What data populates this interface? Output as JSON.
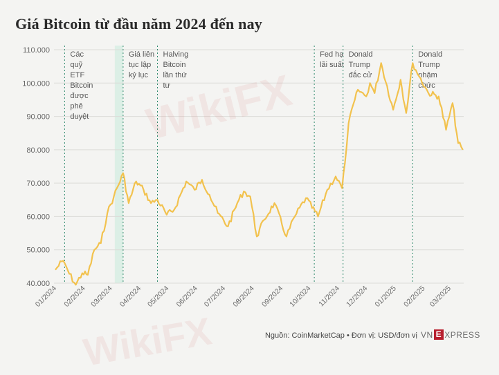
{
  "title": "Giá Bitcoin từ đầu năm 2024 đến nay",
  "footer": {
    "source": "Nguồn: CoinMarketCap • Đơn vị: USD/đơn vị"
  },
  "brand": {
    "left": "VN",
    "box": "E",
    "right": "XPRESS"
  },
  "watermark": "WikiFX",
  "chart_data": {
    "type": "line",
    "title": "Giá Bitcoin từ đầu năm 2024 đến nay",
    "ylim": [
      40000,
      110000
    ],
    "y_ticks": [
      40000,
      50000,
      60000,
      70000,
      80000,
      90000,
      100000,
      110000
    ],
    "y_tick_labels": [
      "40.000",
      "50.000",
      "60.000",
      "70.000",
      "80.000",
      "90.000",
      "100.000",
      "110.000"
    ],
    "x_tick_labels": [
      "01/2024",
      "02/2024",
      "03/2024",
      "04/2024",
      "05/2024",
      "06/2024",
      "07/2024",
      "08/2024",
      "09/2024",
      "10/2024",
      "11/2024",
      "12/2024",
      "01/2025",
      "02/2025",
      "03/2025"
    ],
    "line_color": "#f2c24e",
    "grid": "horizontal",
    "x": [
      "2024-01-01",
      "2024-01-08",
      "2024-01-11",
      "2024-01-16",
      "2024-01-23",
      "2024-01-30",
      "2024-02-05",
      "2024-02-12",
      "2024-02-19",
      "2024-02-26",
      "2024-03-04",
      "2024-03-14",
      "2024-03-20",
      "2024-03-28",
      "2024-04-05",
      "2024-04-13",
      "2024-04-20",
      "2024-04-30",
      "2024-05-08",
      "2024-05-21",
      "2024-05-30",
      "2024-06-07",
      "2024-06-15",
      "2024-06-24",
      "2024-07-05",
      "2024-07-15",
      "2024-07-22",
      "2024-07-29",
      "2024-08-05",
      "2024-08-13",
      "2024-08-24",
      "2024-09-06",
      "2024-09-15",
      "2024-09-27",
      "2024-10-10",
      "2024-10-20",
      "2024-10-29",
      "2024-11-05",
      "2024-11-08",
      "2024-11-12",
      "2024-11-22",
      "2024-12-01",
      "2024-12-05",
      "2024-12-10",
      "2024-12-17",
      "2024-12-30",
      "2025-01-07",
      "2025-01-13",
      "2025-01-20",
      "2025-01-27",
      "2025-02-06",
      "2025-02-17",
      "2025-02-25",
      "2025-03-04",
      "2025-03-10",
      "2025-03-15"
    ],
    "series": [
      {
        "values": [
          44000,
          46500,
          46000,
          42800,
          39500,
          43000,
          42500,
          50000,
          52000,
          61000,
          66000,
          73000,
          64000,
          70500,
          68000,
          64000,
          65000,
          60500,
          62000,
          70500,
          68000,
          71000,
          66500,
          61000,
          57000,
          64000,
          67500,
          66000,
          54000,
          59000,
          64000,
          54000,
          60000,
          65500,
          60000,
          68000,
          72000,
          68500,
          76000,
          88000,
          98000,
          96000,
          100000,
          97000,
          106000,
          92000,
          101000,
          91000,
          106000,
          102000,
          97000,
          96000,
          86000,
          94000,
          82000,
          80000
        ]
      }
    ],
    "annotations": [
      {
        "date": "2024-01-11",
        "lines": [
          "Các",
          "quỹ",
          "ETF",
          "Bitcoin",
          "được",
          "phê",
          "duyệt"
        ]
      },
      {
        "date": "2024-03-14",
        "lines": [
          "Giá liên",
          "tục lập",
          "kỷ lục"
        ]
      },
      {
        "date": "2024-04-20",
        "lines": [
          "Halving",
          "Bitcoin",
          "lần thứ",
          "tư"
        ]
      },
      {
        "date": "2024-10-06",
        "lines": [
          "Fed hạ",
          "lãi suất"
        ]
      },
      {
        "date": "2024-11-06",
        "lines": [
          "Donald",
          "Trump",
          "đắc cử"
        ]
      },
      {
        "date": "2025-01-20",
        "lines": [
          "Donald",
          "Trump",
          "nhậm",
          "chức"
        ]
      }
    ],
    "highlight_band": [
      "2024-03-05",
      "2024-03-14"
    ]
  }
}
